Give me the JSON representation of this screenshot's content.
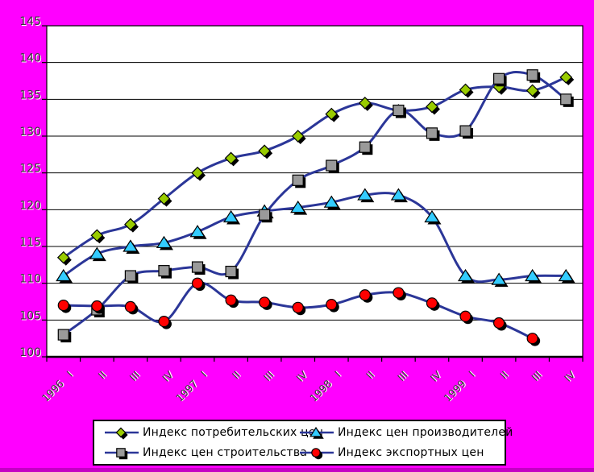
{
  "chart_data": {
    "type": "line",
    "title": "",
    "xlabel": "",
    "ylabel": "",
    "categories": [
      "1996 I",
      "II",
      "III",
      "IV",
      "1997 I",
      "II",
      "III",
      "IV",
      "1998 I",
      "II",
      "III",
      "IV",
      "1999 I",
      "II",
      "III",
      "IV"
    ],
    "series": [
      {
        "name": "Индекс потребительских цен",
        "marker": "diamond",
        "color": "#99cc00",
        "values": [
          113.5,
          116.5,
          118,
          121.5,
          125,
          127,
          128,
          130,
          133,
          134.5,
          133.5,
          134,
          136.3,
          136.7,
          136.2,
          138
        ]
      },
      {
        "name": "Индекс цен производителей",
        "marker": "triangle",
        "color": "#33ccff",
        "values": [
          111,
          114,
          115,
          115.5,
          117,
          119,
          119.8,
          120.3,
          121,
          122,
          122,
          119,
          111,
          110.5,
          111,
          111
        ]
      },
      {
        "name": "Индекс цен строительства",
        "marker": "square",
        "color": "#9a9a9a",
        "values": [
          103,
          106.4,
          111,
          111.7,
          112.2,
          111.6,
          119.3,
          124,
          126,
          128.5,
          133.5,
          130.4,
          130.7,
          137.8,
          138.3,
          135
        ]
      },
      {
        "name": "Индекс экспортных цен",
        "marker": "circle",
        "color": "#ff0000",
        "values": [
          107,
          106.9,
          106.8,
          104.8,
          110,
          107.7,
          107.4,
          106.7,
          107.1,
          108.4,
          108.7,
          107.3,
          105.5,
          104.6,
          102.5,
          null
        ]
      }
    ],
    "ylim": [
      100,
      145
    ],
    "yticks": [
      100,
      105,
      110,
      115,
      120,
      125,
      130,
      135,
      140,
      145
    ],
    "grid": true,
    "smoothed_lines": true,
    "legend_position": "bottom",
    "line_color": "#2b3698"
  },
  "colors": {
    "background": "#ff00ff",
    "plot_background": "#ffffff",
    "gridline": "#000000",
    "axis_text": "#3a3a3a",
    "axis_text_highlight": "#ffffff",
    "legend_background": "#ffffff",
    "legend_border": "#000000",
    "bottom_edge": "#c400c4"
  }
}
